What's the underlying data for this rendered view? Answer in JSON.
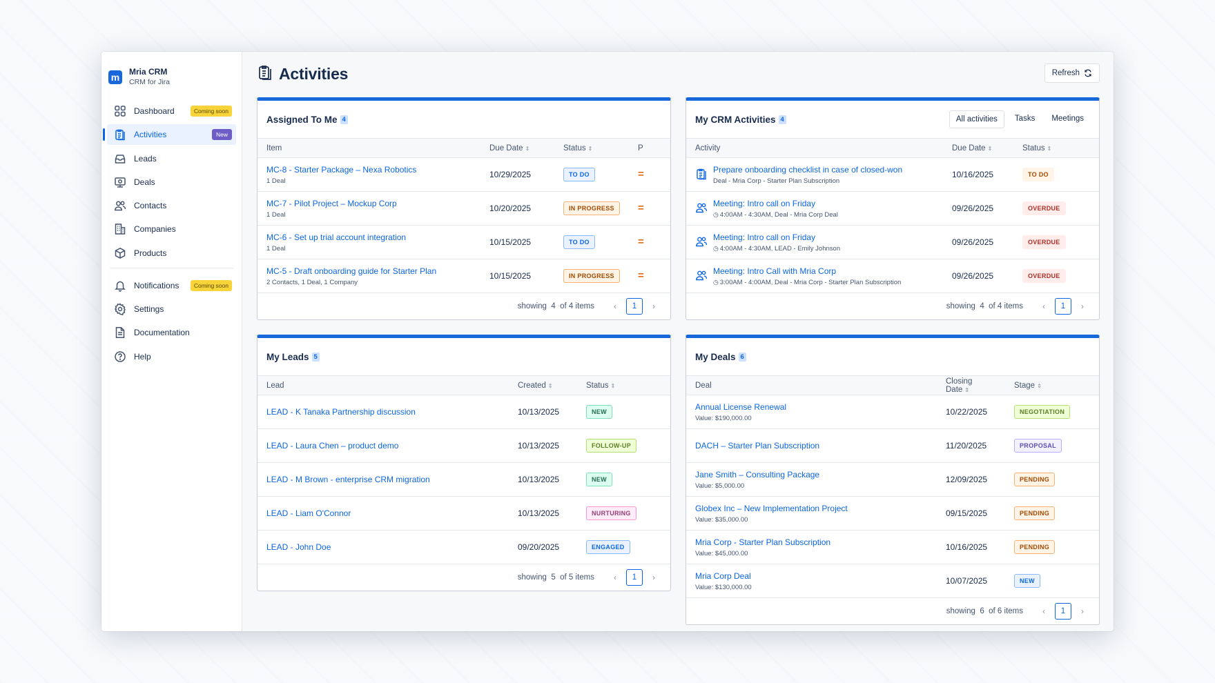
{
  "brand": {
    "name": "Mria CRM",
    "subtitle": "CRM for Jira",
    "logo_letter": "m"
  },
  "sidebar": {
    "items": [
      {
        "label": "Dashboard",
        "icon": "grid-icon",
        "badge": "Coming soon"
      },
      {
        "label": "Activities",
        "icon": "clipboard-icon",
        "badge": "New",
        "active": true
      },
      {
        "label": "Leads",
        "icon": "inbox-icon"
      },
      {
        "label": "Deals",
        "icon": "handshake-icon"
      },
      {
        "label": "Contacts",
        "icon": "people-icon"
      },
      {
        "label": "Companies",
        "icon": "building-icon"
      },
      {
        "label": "Products",
        "icon": "box-icon"
      },
      {
        "label": "Notifications",
        "icon": "bell-icon",
        "badge": "Coming soon"
      },
      {
        "label": "Settings",
        "icon": "gear-icon"
      },
      {
        "label": "Documentation",
        "icon": "document-icon"
      },
      {
        "label": "Help",
        "icon": "help-icon"
      }
    ]
  },
  "header": {
    "title": "Activities",
    "refresh_label": "Refresh"
  },
  "assigned": {
    "title": "Assigned To Me",
    "count": "4",
    "columns": [
      "Item",
      "Due Date",
      "Status",
      "P"
    ],
    "rows": [
      {
        "item": "MC-8 - Starter Package – Nexa Robotics",
        "sub": "1 Deal",
        "due": "10/29/2025",
        "status": "TO DO"
      },
      {
        "item": "MC-7 - Pilot Project – Mockup Corp",
        "sub": "1 Deal",
        "due": "10/20/2025",
        "status": "IN PROGRESS"
      },
      {
        "item": "MC-6 - Set up trial account integration",
        "sub": "1 Deal",
        "due": "10/15/2025",
        "status": "TO DO"
      },
      {
        "item": "MC-5 - Draft onboarding guide for Starter Plan",
        "sub": "2 Contacts, 1 Deal, 1 Company",
        "due": "10/15/2025",
        "status": "IN PROGRESS"
      }
    ],
    "footer": {
      "showing": "showing",
      "shown": "4",
      "total": "of 4 items",
      "page": "1"
    }
  },
  "crm": {
    "title": "My CRM Activities",
    "count": "4",
    "tabs": [
      "All activities",
      "Tasks",
      "Meetings"
    ],
    "columns": [
      "Activity",
      "Due Date",
      "Status"
    ],
    "rows": [
      {
        "icon": "clipboard-icon",
        "title": "Prepare onboarding checklist in case of closed-won",
        "sub": "Deal - Mria Corp - Starter Plan Subscription",
        "due": "10/16/2025",
        "status": "TO DO"
      },
      {
        "icon": "people-icon",
        "title": "Meeting: Intro call on Friday",
        "sub": "4:00AM - 4:30AM, Deal - Mria Corp Deal",
        "due": "09/26/2025",
        "status": "OVERDUE"
      },
      {
        "icon": "people-icon",
        "title": "Meeting: Intro call on Friday",
        "sub": "4:00AM - 4:30AM, LEAD - Emily Johnson",
        "due": "09/26/2025",
        "status": "OVERDUE"
      },
      {
        "icon": "people-icon",
        "title": "Meeting: Intro Call with Mria Corp",
        "sub": "3:00AM - 4:00AM, Deal - Mria Corp - Starter Plan Subscription",
        "due": "09/26/2025",
        "status": "OVERDUE"
      }
    ],
    "footer": {
      "showing": "showing",
      "shown": "4",
      "total": "of 4 items",
      "page": "1"
    }
  },
  "leads": {
    "title": "My Leads",
    "count": "5",
    "columns": [
      "Lead",
      "Created",
      "Status"
    ],
    "rows": [
      {
        "lead": "LEAD - K Tanaka Partnership discussion",
        "created": "10/13/2025",
        "status": "NEW"
      },
      {
        "lead": "LEAD - Laura Chen – product demo",
        "created": "10/13/2025",
        "status": "FOLLOW-UP"
      },
      {
        "lead": "LEAD - M Brown - enterprise CRM migration",
        "created": "10/13/2025",
        "status": "NEW"
      },
      {
        "lead": "LEAD - Liam O'Connor",
        "created": "10/13/2025",
        "status": "NURTURING"
      },
      {
        "lead": "LEAD - John Doe",
        "created": "09/20/2025",
        "status": "ENGAGED"
      }
    ],
    "footer": {
      "showing": "showing",
      "shown": "5",
      "total": "of 5 items",
      "page": "1"
    }
  },
  "deals": {
    "title": "My Deals",
    "count": "6",
    "columns": [
      "Deal",
      "Closing Date",
      "Stage"
    ],
    "rows": [
      {
        "deal": "Annual License Renewal",
        "value": "Value: $190,000.00",
        "closing": "10/22/2025",
        "stage": "NEGOTIATION"
      },
      {
        "deal": "DACH – Starter Plan Subscription",
        "value": "",
        "closing": "11/20/2025",
        "stage": "PROPOSAL"
      },
      {
        "deal": "Jane Smith – Consulting Package",
        "value": "Value: $5,000.00",
        "closing": "12/09/2025",
        "stage": "PENDING"
      },
      {
        "deal": "Globex Inc – New Implementation Project",
        "value": "Value: $35,000.00",
        "closing": "09/15/2025",
        "stage": "PENDING"
      },
      {
        "deal": "Mria Corp - Starter Plan Subscription",
        "value": "Value: $45,000.00",
        "closing": "10/16/2025",
        "stage": "PENDING"
      },
      {
        "deal": "Mria Corp Deal",
        "value": "Value: $130,000.00",
        "closing": "10/07/2025",
        "stage": "NEW"
      }
    ],
    "footer": {
      "showing": "showing",
      "shown": "6",
      "total": "of 6 items",
      "page": "1"
    }
  },
  "colors": {
    "accent": "#1868db",
    "link": "#0c66e4",
    "priority": "#e56910"
  }
}
